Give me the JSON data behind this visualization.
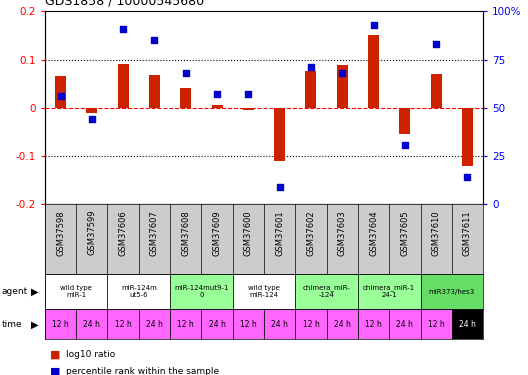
{
  "title": "GDS1858 / 10000545680",
  "samples": [
    "GSM37598",
    "GSM37599",
    "GSM37606",
    "GSM37607",
    "GSM37608",
    "GSM37609",
    "GSM37600",
    "GSM37601",
    "GSM37602",
    "GSM37603",
    "GSM37604",
    "GSM37605",
    "GSM37610",
    "GSM37611"
  ],
  "log10_ratio": [
    0.065,
    -0.01,
    0.09,
    0.068,
    0.042,
    0.005,
    -0.005,
    -0.11,
    0.077,
    0.088,
    0.15,
    -0.055,
    0.07,
    -0.12
  ],
  "percentile_rank": [
    56,
    44,
    91,
    85,
    68,
    57,
    57,
    9,
    71,
    68,
    93,
    31,
    83,
    14
  ],
  "agents": [
    {
      "label": "wild type\nmiR-1",
      "span": [
        0,
        2
      ],
      "color": "#ffffff"
    },
    {
      "label": "miR-124m\nut5-6",
      "span": [
        2,
        4
      ],
      "color": "#ffffff"
    },
    {
      "label": "miR-124mut9-1\n0",
      "span": [
        4,
        6
      ],
      "color": "#99ff99"
    },
    {
      "label": "wild type\nmiR-124",
      "span": [
        6,
        8
      ],
      "color": "#ffffff"
    },
    {
      "label": "chimera_miR-\n-124",
      "span": [
        8,
        10
      ],
      "color": "#99ff99"
    },
    {
      "label": "chimera_miR-1\n24-1",
      "span": [
        10,
        12
      ],
      "color": "#99ff99"
    },
    {
      "label": "miR373/hes3",
      "span": [
        12,
        14
      ],
      "color": "#66dd66"
    }
  ],
  "times": [
    "12 h",
    "24 h",
    "12 h",
    "24 h",
    "12 h",
    "24 h",
    "12 h",
    "24 h",
    "12 h",
    "24 h",
    "12 h",
    "24 h",
    "12 h",
    "24 h"
  ],
  "time_colors": [
    "#ff66ff",
    "#ff66ff",
    "#ff66ff",
    "#ff66ff",
    "#ff66ff",
    "#ff66ff",
    "#ff66ff",
    "#ff66ff",
    "#ff66ff",
    "#ff66ff",
    "#ff66ff",
    "#ff66ff",
    "#ff66ff",
    "#000000"
  ],
  "time_text_colors": [
    "#000000",
    "#000000",
    "#000000",
    "#000000",
    "#000000",
    "#000000",
    "#000000",
    "#000000",
    "#000000",
    "#000000",
    "#000000",
    "#000000",
    "#000000",
    "#ffffff"
  ],
  "time_bg_color": "#ff66ff",
  "sample_bg_color": "#cccccc",
  "bar_color": "#cc2200",
  "dot_color": "#0000cc",
  "ylim_left": [
    -0.2,
    0.2
  ],
  "ylim_right": [
    0,
    100
  ],
  "yticks_left": [
    -0.2,
    -0.1,
    0.0,
    0.1,
    0.2
  ],
  "ytick_labels_left": [
    "-0.2",
    "-0.1",
    "0",
    "0.1",
    "0.2"
  ],
  "yticks_right": [
    0,
    25,
    50,
    75,
    100
  ],
  "ytick_labels_right": [
    "0",
    "25",
    "50",
    "75",
    "100%"
  ]
}
